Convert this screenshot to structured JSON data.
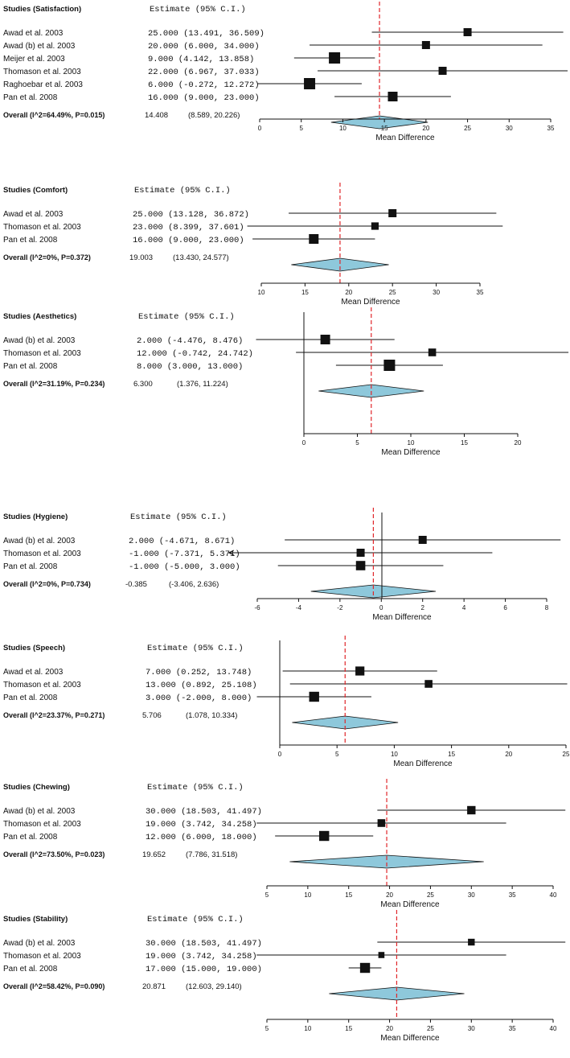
{
  "chart_data": [
    {
      "type": "forest",
      "title": "Studies (Satisfaction)",
      "estimate_header": "Estimate (95% C.I.)",
      "xlabel": "Mean Difference",
      "xlim": [
        0,
        35
      ],
      "ticks": [
        0,
        5,
        10,
        15,
        20,
        25,
        30,
        35
      ],
      "overall_line": 14.408,
      "studies": [
        {
          "name": "Awad et al. 2003",
          "ci_text": "25.000 (13.491, 36.509)",
          "estimate": 25.0,
          "lower": 13.491,
          "upper": 36.509,
          "weight": 1
        },
        {
          "name": "Awad (b) et al. 2003",
          "ci_text": "20.000 (6.000, 34.000)",
          "estimate": 20.0,
          "lower": 6.0,
          "upper": 34.0,
          "weight": 1
        },
        {
          "name": "Meijer et al. 2003",
          "ci_text": " 9.000 (4.142, 13.858)",
          "estimate": 9.0,
          "lower": 4.142,
          "upper": 13.858,
          "weight": 2
        },
        {
          "name": "Thomason et al. 2003",
          "ci_text": "22.000 (6.967, 37.033)",
          "estimate": 22.0,
          "lower": 6.967,
          "upper": 37.033,
          "weight": 1
        },
        {
          "name": "Raghoebar et al. 2003",
          "ci_text": " 6.000 (-0.272, 12.272)",
          "estimate": 6.0,
          "lower": -0.272,
          "upper": 12.272,
          "weight": 2
        },
        {
          "name": "Pan et al. 2008",
          "ci_text": "16.000 (9.000, 23.000)",
          "estimate": 16.0,
          "lower": 9.0,
          "upper": 23.0,
          "weight": 1.5
        }
      ],
      "overall": {
        "label": "Overall (I^2=64.49%, P=0.015)",
        "estimate_text": "14.408",
        "ci_text": "(8.589,     20.226)",
        "estimate": 14.408,
        "lower": 8.589,
        "upper": 20.226
      }
    },
    {
      "type": "forest",
      "title": "Studies (Comfort)",
      "estimate_header": "Estimate (95% C.I.)",
      "xlabel": "Mean Difference",
      "xlim": [
        10,
        35
      ],
      "ticks": [
        10,
        15,
        20,
        25,
        30,
        35
      ],
      "overall_line": 19.003,
      "studies": [
        {
          "name": "Awad et al.  2003",
          "ci_text": "25.000 (13.128, 36.872)",
          "estimate": 25.0,
          "lower": 13.128,
          "upper": 36.872,
          "weight": 1
        },
        {
          "name": "Thomason et al. 2003",
          "ci_text": "23.000 (8.399, 37.601)",
          "estimate": 23.0,
          "lower": 8.399,
          "upper": 37.601,
          "weight": 0.8
        },
        {
          "name": "Pan et al. 2008",
          "ci_text": "16.000 (9.000, 23.000)",
          "estimate": 16.0,
          "lower": 9.0,
          "upper": 23.0,
          "weight": 1.5
        }
      ],
      "overall": {
        "label": "Overall (I^2=0%, P=0.372)",
        "estimate_text": "19.003",
        "ci_text": "(13.430,    24.577)",
        "estimate": 19.003,
        "lower": 13.43,
        "upper": 24.577
      }
    },
    {
      "type": "forest",
      "title": "Studies (Aesthetics)",
      "estimate_header": "Estimate (95% C.I.)",
      "xlabel": "Mean Difference",
      "xlim": [
        0,
        20
      ],
      "ticks": [
        0,
        5,
        10,
        15,
        20
      ],
      "overall_line": 6.3,
      "zero_line": true,
      "studies": [
        {
          "name": "Awad (b) et al. 2003",
          "ci_text": " 2.000 (-4.476, 8.476)",
          "estimate": 2.0,
          "lower": -4.476,
          "upper": 8.476,
          "weight": 1.5
        },
        {
          "name": "Thomason et al. 2003",
          "ci_text": "12.000 (-0.742, 24.742)",
          "estimate": 12.0,
          "lower": -0.742,
          "upper": 24.742,
          "weight": 0.9
        },
        {
          "name": "Pan et al. 2008",
          "ci_text": " 8.000 (3.000, 13.000)",
          "estimate": 8.0,
          "lower": 3.0,
          "upper": 13.0,
          "weight": 2
        }
      ],
      "overall": {
        "label": "Overall (I^2=31.19%, P=0.234)",
        "estimate_text": "6.300",
        "ci_text": "(1.376,     11.224)",
        "estimate": 6.3,
        "lower": 1.376,
        "upper": 11.224
      }
    },
    {
      "type": "forest",
      "title": "Studies (Hygiene)",
      "estimate_header": "Estimate (95% C.I.)",
      "xlabel": "Mean Difference",
      "xlim": [
        -6,
        8
      ],
      "ticks": [
        -6,
        -4,
        -2,
        0,
        2,
        4,
        6,
        8
      ],
      "overall_line": -0.385,
      "zero_line": true,
      "studies": [
        {
          "name": "Awad (b) et al. 2003",
          "ci_text": " 2.000 (-4.671, 8.671)",
          "estimate": 2.0,
          "lower": -4.671,
          "upper": 8.671,
          "weight": 1
        },
        {
          "name": "Thomason et al. 2003",
          "ci_text": "-1.000 (-7.371, 5.371)",
          "estimate": -1.0,
          "lower": -7.371,
          "upper": 5.371,
          "weight": 1
        },
        {
          "name": "Pan et al. 2008",
          "ci_text": "-1.000 (-5.000, 3.000)",
          "estimate": -1.0,
          "lower": -5.0,
          "upper": 3.0,
          "weight": 1.4
        }
      ],
      "overall": {
        "label": "Overall (I^2=0%, P=0.734)",
        "estimate_text": "-0.385",
        "ci_text": "(-3.406,     2.636)",
        "estimate": -0.385,
        "lower": -3.406,
        "upper": 2.636
      }
    },
    {
      "type": "forest",
      "title": "Studies (Speech)",
      "estimate_header": "Estimate (95% C.I.)",
      "xlabel": "Mean Difference",
      "xlim": [
        0,
        25
      ],
      "ticks": [
        0,
        5,
        10,
        15,
        20,
        25
      ],
      "overall_line": 5.706,
      "zero_line": true,
      "studies": [
        {
          "name": "Awad et al.  2003",
          "ci_text": " 7.000 (0.252, 13.748)",
          "estimate": 7.0,
          "lower": 0.252,
          "upper": 13.748,
          "weight": 1.3
        },
        {
          "name": "Thomason et al. 2003",
          "ci_text": "13.000 (0.892, 25.108)",
          "estimate": 13.0,
          "lower": 0.892,
          "upper": 25.108,
          "weight": 0.9
        },
        {
          "name": "Pan et al. 2008",
          "ci_text": " 3.000 (-2.000, 8.000)",
          "estimate": 3.0,
          "lower": -2.0,
          "upper": 8.0,
          "weight": 1.6
        }
      ],
      "overall": {
        "label": "Overall (I^2=23.37%, P=0.271)",
        "estimate_text": "5.706",
        "ci_text": "(1.078,     10.334)",
        "estimate": 5.706,
        "lower": 1.078,
        "upper": 10.334
      }
    },
    {
      "type": "forest",
      "title": "Studies (Chewing)",
      "estimate_header": "Estimate (95% C.I.)",
      "xlabel": "Mean Difference",
      "xlim": [
        5,
        40
      ],
      "ticks": [
        5,
        10,
        15,
        20,
        25,
        30,
        35,
        40
      ],
      "overall_line": 19.652,
      "studies": [
        {
          "name": "Awad (b) et al. 2003",
          "ci_text": "30.000 (18.503, 41.497)",
          "estimate": 30.0,
          "lower": 18.503,
          "upper": 41.497,
          "weight": 1.1
        },
        {
          "name": "Thomason et al. 2003",
          "ci_text": "19.000 (3.742, 34.258)",
          "estimate": 19.0,
          "lower": 3.742,
          "upper": 34.258,
          "weight": 0.9
        },
        {
          "name": "Pan et al. 2008",
          "ci_text": "12.000 (6.000, 18.000)",
          "estimate": 12.0,
          "lower": 6.0,
          "upper": 18.0,
          "weight": 1.6
        }
      ],
      "overall": {
        "label": "Overall (I^2=73.50%, P=0.023)",
        "estimate_text": "19.652",
        "ci_text": "(7.786,     31.518)",
        "estimate": 19.652,
        "lower": 7.786,
        "upper": 31.518
      }
    },
    {
      "type": "forest",
      "title": "Studies (Stability)",
      "estimate_header": "Estimate (95% C.I.)",
      "xlabel": "Mean Difference",
      "xlim": [
        5,
        40
      ],
      "ticks": [
        5,
        10,
        15,
        20,
        25,
        30,
        35,
        40
      ],
      "overall_line": 20.871,
      "studies": [
        {
          "name": "Awad (b) et al. 2003",
          "ci_text": "30.000 (18.503, 41.497)",
          "estimate": 30.0,
          "lower": 18.503,
          "upper": 41.497,
          "weight": 0.6
        },
        {
          "name": "Thomason et al. 2003",
          "ci_text": "19.000 (3.742, 34.258)",
          "estimate": 19.0,
          "lower": 3.742,
          "upper": 34.258,
          "weight": 0.4
        },
        {
          "name": "Pan et al. 2008",
          "ci_text": "17.000 (15.000, 19.000)",
          "estimate": 17.0,
          "lower": 15.0,
          "upper": 19.0,
          "weight": 1.6
        }
      ],
      "overall": {
        "label": "Overall (I^2=58.42%, P=0.090)",
        "estimate_text": "20.871",
        "ci_text": "(12.603,    29.140)",
        "estimate": 20.871,
        "lower": 12.603,
        "upper": 29.14
      }
    }
  ],
  "colors": {
    "diamond_fill": "#8ec8db",
    "overall_line": "#e0262a",
    "ink": "#111111"
  }
}
